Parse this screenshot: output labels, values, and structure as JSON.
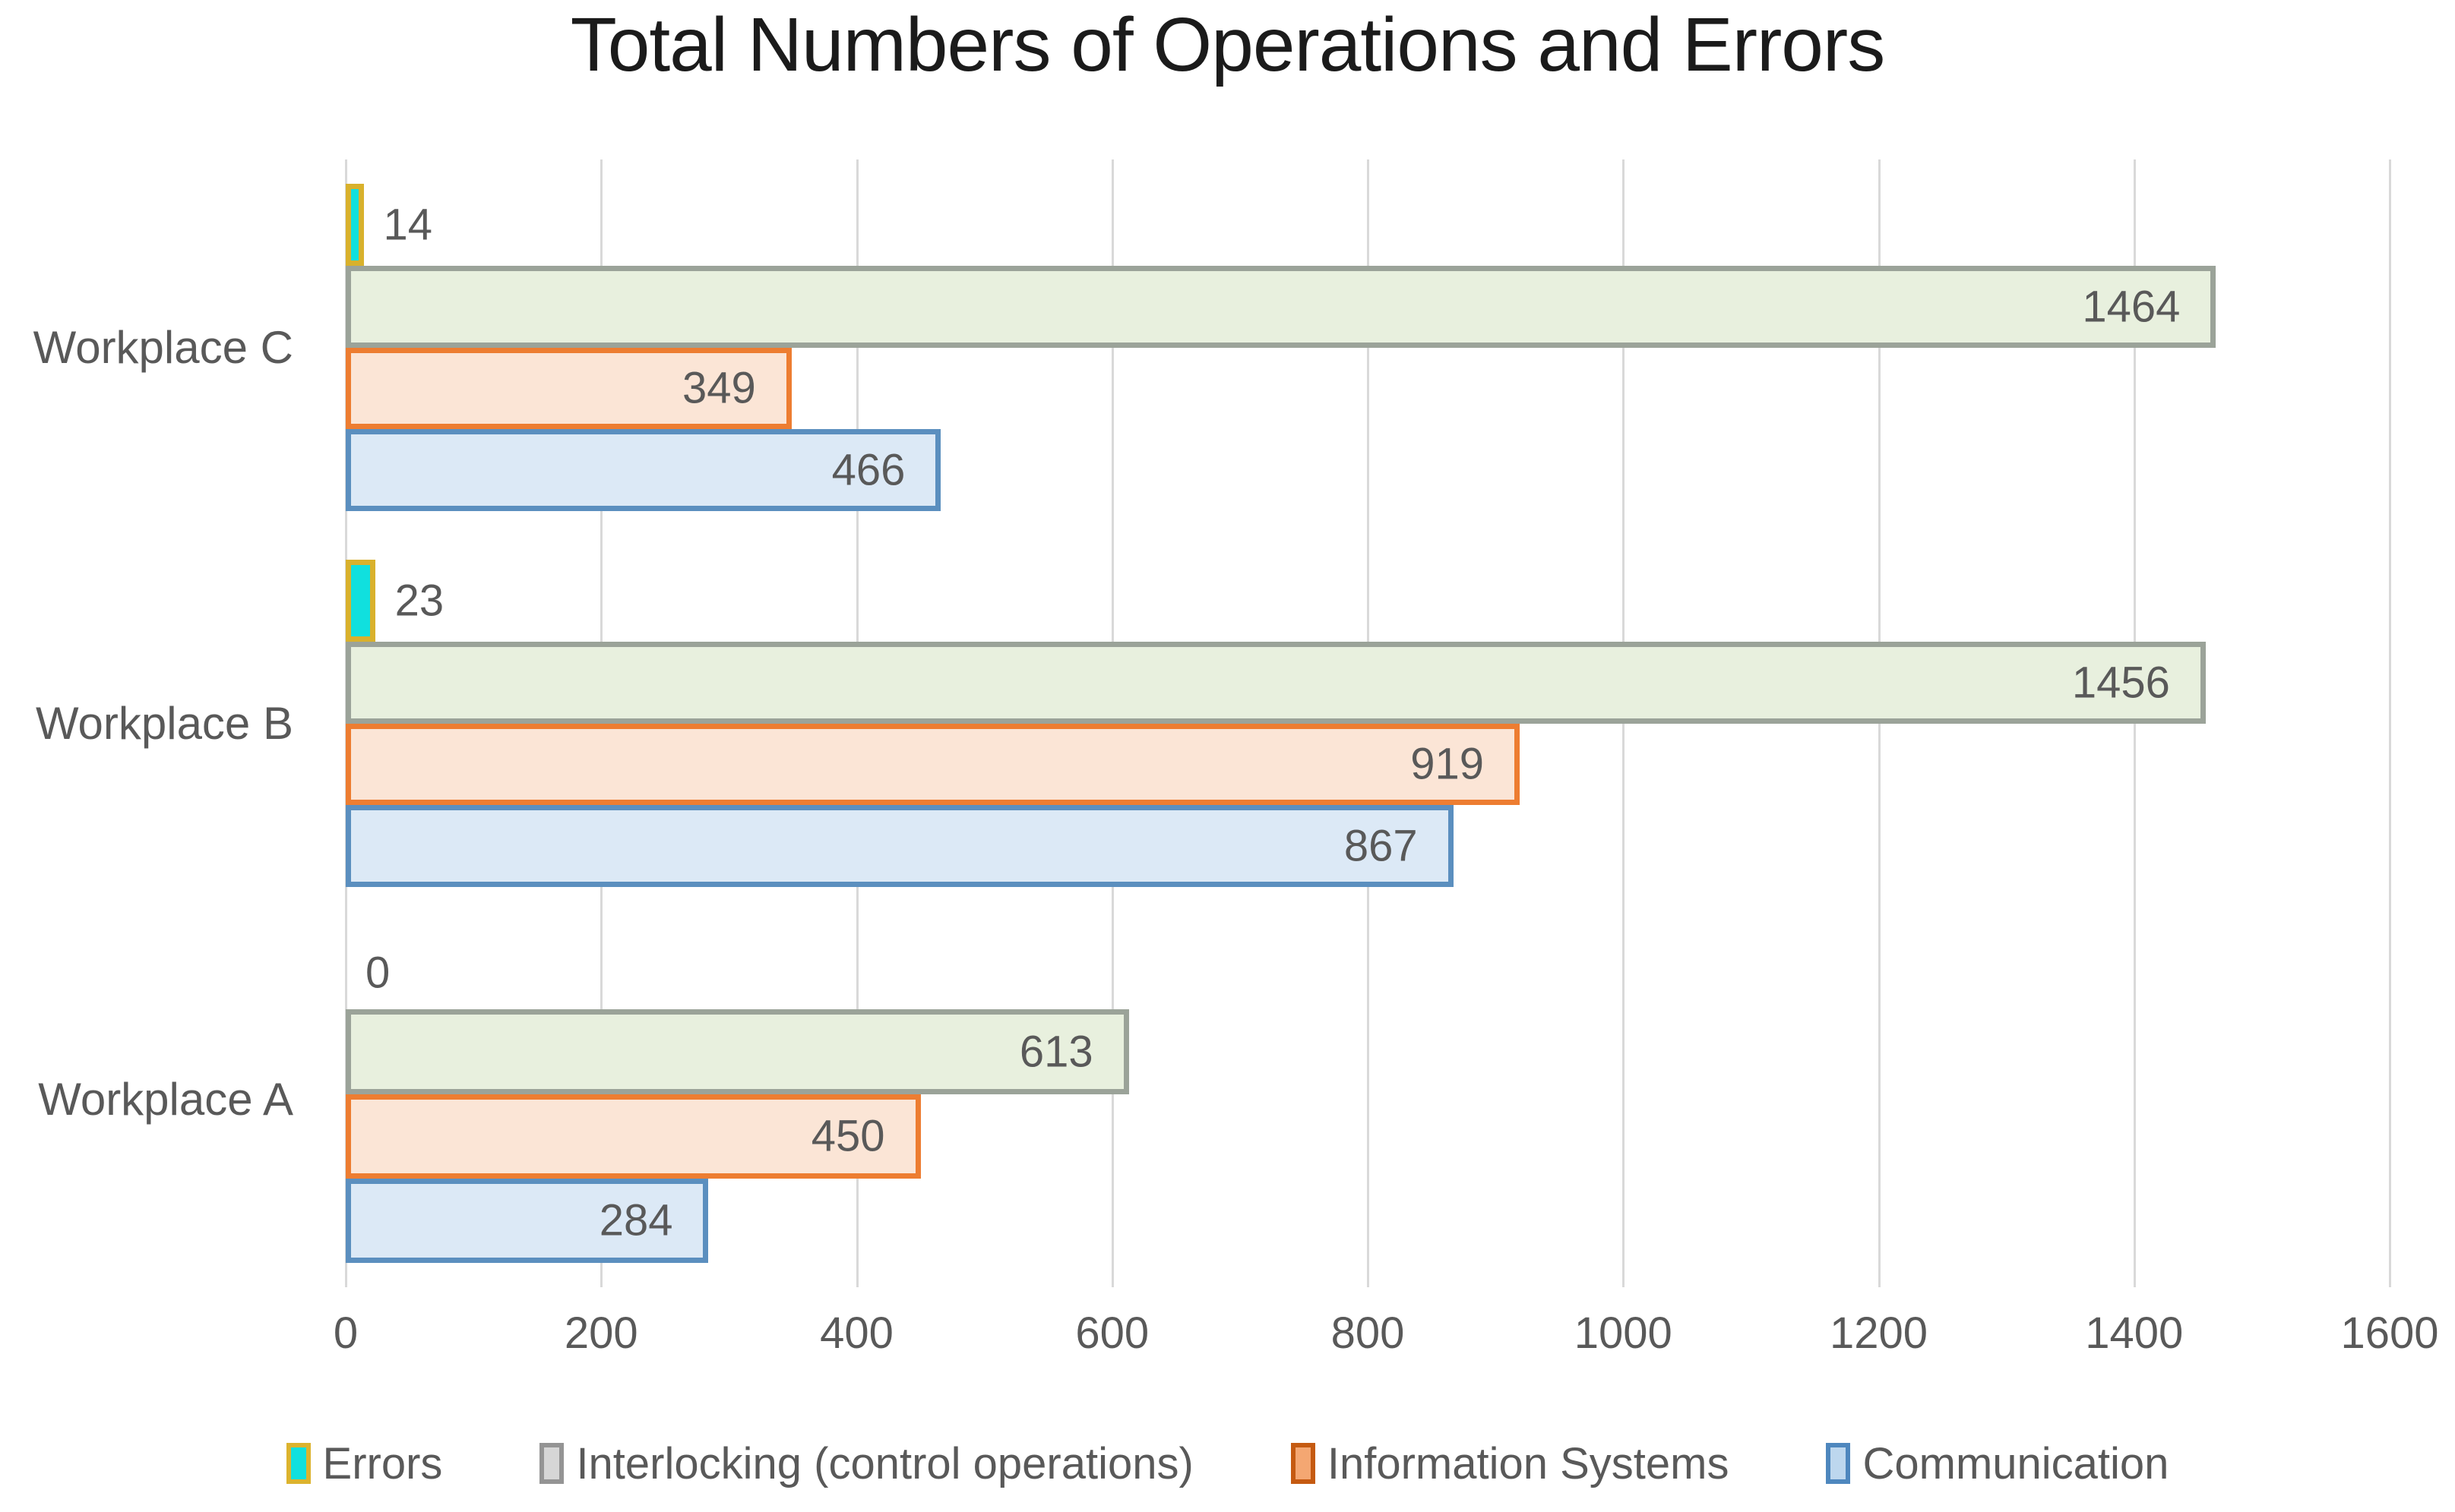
{
  "chart_data": {
    "type": "bar",
    "orientation": "horizontal",
    "title": "Total Numbers of Operations and Errors",
    "categories_top_to_bottom": [
      "Workplace C",
      "Workplace B",
      "Workplace A"
    ],
    "series": [
      {
        "key": "errors",
        "name": "Errors",
        "values": {
          "Workplace C": 14,
          "Workplace B": 23,
          "Workplace A": 0
        }
      },
      {
        "key": "interlocking",
        "name": "Interlocking (control operations)",
        "values": {
          "Workplace C": 1464,
          "Workplace B": 1456,
          "Workplace A": 613
        }
      },
      {
        "key": "information_systems",
        "name": "Information Systems",
        "values": {
          "Workplace C": 349,
          "Workplace B": 919,
          "Workplace A": 450
        }
      },
      {
        "key": "communication",
        "name": "Communication",
        "values": {
          "Workplace C": 466,
          "Workplace B": 867,
          "Workplace A": 284
        }
      }
    ],
    "bar_order_top_to_bottom": [
      "errors",
      "interlocking",
      "information_systems",
      "communication"
    ],
    "xlim": [
      0,
      1600
    ],
    "xticks": [
      "0",
      "200",
      "400",
      "600",
      "800",
      "1000",
      "1200",
      "1400",
      "1600"
    ],
    "grid": true,
    "legend_position": "bottom",
    "data_labels_shown": true,
    "label_outside_threshold": 100,
    "styles": {
      "errors": {
        "fill": "#10e0de",
        "border": "#d9b12c",
        "legend_fill": "#10e0de",
        "legend_border": "#dcb32e"
      },
      "interlocking": {
        "fill": "#e8f0de",
        "border": "#9ba399",
        "legend_fill": "#d6d6d6",
        "legend_border": "#949494"
      },
      "information_systems": {
        "fill": "#fbe5d6",
        "border": "#ed7d31",
        "legend_fill": "#f4a772",
        "legend_border": "#c55a11"
      },
      "communication": {
        "fill": "#dce9f6",
        "border": "#5b8fbf",
        "legend_fill": "#bdd7ee",
        "legend_border": "#4e87be"
      }
    },
    "colors": {
      "title_text": "#1b1b1b",
      "axis_text": "#595959",
      "data_label_text": "#595959",
      "gridline": "#d9d9d9",
      "background": "#ffffff"
    }
  }
}
